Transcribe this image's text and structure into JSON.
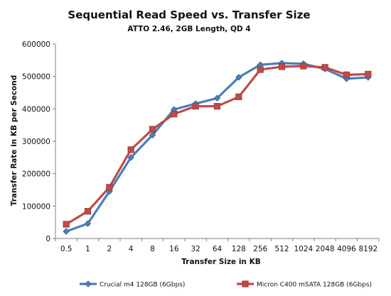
{
  "chart_data": {
    "type": "line",
    "title": "Sequential Read Speed vs. Transfer Size",
    "subtitle": "ATTO 2.46, 2GB Length, QD 4",
    "xlabel": "Transfer Size in KB",
    "ylabel": "Transfer Rate in KB per Second",
    "categories": [
      "0.5",
      "1",
      "2",
      "4",
      "8",
      "16",
      "32",
      "64",
      "128",
      "256",
      "512",
      "1024",
      "2048",
      "4096",
      "8192"
    ],
    "ylim": [
      0,
      600000
    ],
    "yticks": [
      "0",
      "100000",
      "200000",
      "300000",
      "400000",
      "500000",
      "600000"
    ],
    "grid": false,
    "legend_position": "bottom",
    "series": [
      {
        "name": "Crucial m4 128GB (6Gbps)",
        "color": "#4a7ebb",
        "marker": "diamond",
        "values": [
          22000,
          46000,
          145000,
          250000,
          319000,
          398000,
          416000,
          433000,
          497000,
          536000,
          541000,
          539000,
          523000,
          493000,
          497000
        ]
      },
      {
        "name": "Micron C400 mSATA 128GB (6Gbps)",
        "color": "#be4b48",
        "marker": "square",
        "values": [
          44000,
          84000,
          158000,
          274000,
          337000,
          384000,
          408000,
          408000,
          437000,
          521000,
          530000,
          532000,
          528000,
          505000,
          507000
        ]
      }
    ]
  }
}
